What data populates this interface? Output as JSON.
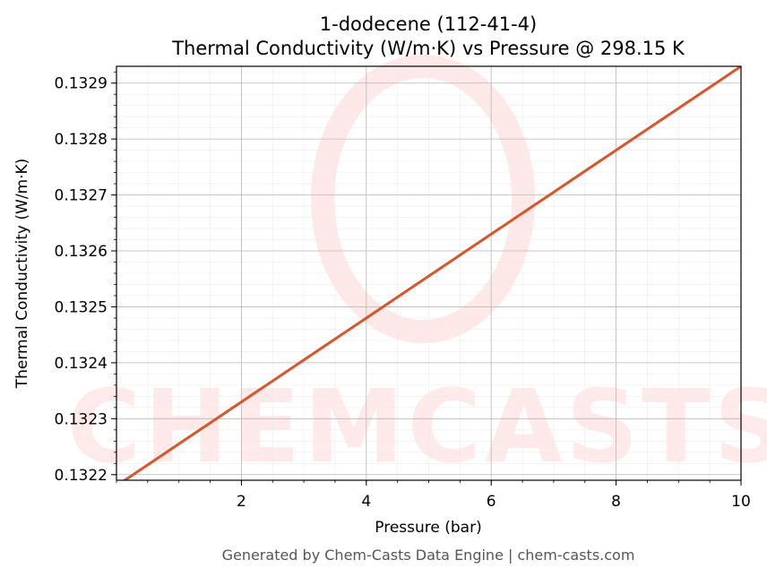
{
  "chart_data": {
    "type": "line",
    "title": "1-dodecene (112-41-4)",
    "subtitle": "Thermal Conductivity (W/m·K) vs Pressure @ 298.15 K",
    "xlabel": "Pressure (bar)",
    "ylabel": "Thermal Conductivity (W/m·K)",
    "xlim": [
      0,
      10
    ],
    "ylim": [
      0.13219,
      0.13293
    ],
    "x_ticks": [
      2,
      4,
      6,
      8,
      10
    ],
    "x_tick_labels": [
      "2",
      "4",
      "6",
      "8",
      "10"
    ],
    "y_ticks": [
      0.1322,
      0.1323,
      0.1324,
      0.1325,
      0.1326,
      0.1327,
      0.1328,
      0.1329
    ],
    "y_tick_labels": [
      "0.1322",
      "0.1323",
      "0.1324",
      "0.1325",
      "0.1326",
      "0.1327",
      "0.1328",
      "0.1329"
    ],
    "grid": true,
    "series": [
      {
        "color": "#d9552b",
        "x": [
          0,
          1,
          2,
          3,
          4,
          5,
          6,
          7,
          8,
          9,
          10
        ],
        "y": [
          0.13218,
          0.132255,
          0.13233,
          0.132405,
          0.13248,
          0.132555,
          0.13263,
          0.132705,
          0.13278,
          0.132855,
          0.13293
        ]
      }
    ]
  },
  "watermark": {
    "text": "CHEMCASTS",
    "color": "#ffd8d8"
  },
  "footer": "Generated by Chem-Casts Data Engine | chem-casts.com"
}
